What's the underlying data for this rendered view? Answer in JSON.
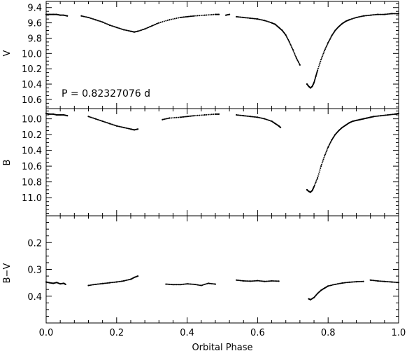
{
  "chart_data": [
    {
      "panel": "top",
      "type": "scatter",
      "ylabel": "V",
      "xlim": [
        0.0,
        1.0
      ],
      "ylim": [
        9.32,
        10.72
      ],
      "y_inverted": true,
      "yticks": [
        "9.4",
        "9.6",
        "9.8",
        "10.0",
        "10.2",
        "10.4",
        "10.6"
      ],
      "annotation": "P = 0.82327076 d",
      "series": [
        {
          "color": "#000000",
          "segments": [
            {
              "x": [
                0.0,
                0.01,
                0.02,
                0.03,
                0.04,
                0.05,
                0.06
              ],
              "y": [
                9.49,
                9.49,
                9.49,
                9.49,
                9.5,
                9.5,
                9.51
              ]
            },
            {
              "x": [
                0.1,
                0.12,
                0.14,
                0.16,
                0.18,
                0.2,
                0.22,
                0.24,
                0.25,
                0.26,
                0.28,
                0.3,
                0.32,
                0.35,
                0.38,
                0.4,
                0.42,
                0.45,
                0.48,
                0.49
              ],
              "y": [
                9.51,
                9.53,
                9.56,
                9.59,
                9.63,
                9.66,
                9.69,
                9.71,
                9.72,
                9.71,
                9.68,
                9.64,
                9.6,
                9.56,
                9.53,
                9.52,
                9.51,
                9.5,
                9.49,
                9.49
              ]
            },
            {
              "x": [
                0.51,
                0.52
              ],
              "y": [
                9.5,
                9.49
              ]
            },
            {
              "x": [
                0.54,
                0.56,
                0.58,
                0.6,
                0.62,
                0.64,
                0.65,
                0.66,
                0.67,
                0.68,
                0.69,
                0.7,
                0.71,
                0.72
              ],
              "y": [
                9.52,
                9.53,
                9.54,
                9.55,
                9.57,
                9.6,
                9.62,
                9.66,
                9.7,
                9.76,
                9.85,
                9.95,
                10.06,
                10.15
              ]
            },
            {
              "x": [
                0.74,
                0.745,
                0.75,
                0.755,
                0.76,
                0.765,
                0.77,
                0.78,
                0.79,
                0.8,
                0.81,
                0.82,
                0.83,
                0.84,
                0.85,
                0.86,
                0.88,
                0.9,
                0.92,
                0.94,
                0.96,
                0.98,
                1.0
              ],
              "y": [
                10.4,
                10.43,
                10.45,
                10.43,
                10.38,
                10.3,
                10.22,
                10.08,
                9.96,
                9.86,
                9.77,
                9.7,
                9.65,
                9.61,
                9.58,
                9.56,
                9.53,
                9.51,
                9.5,
                9.49,
                9.49,
                9.48,
                9.48
              ]
            }
          ]
        }
      ]
    },
    {
      "panel": "middle",
      "type": "scatter",
      "ylabel": "B",
      "xlim": [
        0.0,
        1.0
      ],
      "ylim": [
        9.87,
        11.23
      ],
      "y_inverted": true,
      "yticks": [
        "10.0",
        "10.2",
        "10.4",
        "10.6",
        "10.8",
        "11.0"
      ],
      "series": [
        {
          "color": "#000000",
          "segments": [
            {
              "x": [
                0.0,
                0.01,
                0.02,
                0.03,
                0.04,
                0.05,
                0.06
              ],
              "y": [
                9.93,
                9.94,
                9.94,
                9.95,
                9.95,
                9.95,
                9.96
              ]
            },
            {
              "x": [
                0.12,
                0.14,
                0.16,
                0.18,
                0.2,
                0.22,
                0.24,
                0.25,
                0.26
              ],
              "y": [
                9.97,
                10.0,
                10.03,
                10.06,
                10.09,
                10.11,
                10.13,
                10.14,
                10.13
              ]
            },
            {
              "x": [
                0.33,
                0.35,
                0.38,
                0.4,
                0.42,
                0.45,
                0.48,
                0.49
              ],
              "y": [
                10.01,
                9.99,
                9.98,
                9.97,
                9.96,
                9.95,
                9.94,
                9.94
              ]
            },
            {
              "x": [
                0.54,
                0.56,
                0.58,
                0.6,
                0.62,
                0.64,
                0.65,
                0.66,
                0.665
              ],
              "y": [
                9.95,
                9.96,
                9.97,
                9.98,
                10.0,
                10.03,
                10.06,
                10.09,
                10.11
              ]
            },
            {
              "x": [
                0.74,
                0.745,
                0.75,
                0.755,
                0.76,
                0.77,
                0.78,
                0.79,
                0.8,
                0.81,
                0.82,
                0.83,
                0.84,
                0.85,
                0.86,
                0.87,
                0.88,
                0.89,
                0.9,
                0.91,
                0.92,
                0.93,
                0.95,
                0.97,
                0.99,
                1.0
              ],
              "y": [
                10.9,
                10.92,
                10.93,
                10.91,
                10.86,
                10.75,
                10.6,
                10.47,
                10.36,
                10.27,
                10.2,
                10.15,
                10.11,
                10.08,
                10.05,
                10.03,
                10.02,
                10.01,
                10.0,
                9.99,
                9.98,
                9.97,
                9.96,
                9.95,
                9.94,
                9.93
              ]
            }
          ]
        }
      ]
    },
    {
      "panel": "bottom",
      "type": "scatter",
      "ylabel": "B−V",
      "xlabel": "Orbital Phase",
      "xlim": [
        0.0,
        1.0
      ],
      "ylim": [
        0.1,
        0.5
      ],
      "y_inverted": true,
      "yticks": [
        "0.2",
        "0.3",
        "0.4"
      ],
      "xticks": [
        "0.0",
        "0.2",
        "0.4",
        "0.6",
        "0.8",
        "1.0"
      ],
      "series": [
        {
          "color": "#000000",
          "segments": [
            {
              "x": [
                0.0,
                0.01,
                0.02,
                0.03,
                0.04,
                0.05,
                0.055
              ],
              "y": [
                0.347,
                0.35,
                0.352,
                0.349,
                0.354,
                0.352,
                0.356
              ]
            },
            {
              "x": [
                0.12,
                0.14,
                0.16,
                0.18,
                0.2,
                0.22,
                0.24,
                0.25,
                0.26
              ],
              "y": [
                0.36,
                0.356,
                0.353,
                0.35,
                0.347,
                0.343,
                0.337,
                0.33,
                0.325
              ]
            },
            {
              "x": [
                0.34,
                0.36,
                0.38,
                0.4,
                0.42,
                0.44,
                0.46,
                0.48
              ],
              "y": [
                0.355,
                0.357,
                0.357,
                0.354,
                0.356,
                0.36,
                0.352,
                0.355
              ]
            },
            {
              "x": [
                0.54,
                0.56,
                0.58,
                0.6,
                0.62,
                0.64,
                0.66
              ],
              "y": [
                0.34,
                0.343,
                0.344,
                0.342,
                0.345,
                0.343,
                0.344
              ]
            },
            {
              "x": [
                0.745,
                0.75,
                0.76,
                0.77,
                0.78,
                0.79,
                0.8,
                0.82,
                0.84,
                0.86,
                0.88,
                0.9
              ],
              "y": [
                0.41,
                0.413,
                0.405,
                0.39,
                0.378,
                0.37,
                0.362,
                0.356,
                0.351,
                0.348,
                0.346,
                0.345
              ]
            },
            {
              "x": [
                0.92,
                0.94,
                0.96,
                0.98,
                1.0
              ],
              "y": [
                0.34,
                0.343,
                0.345,
                0.347,
                0.349
              ]
            }
          ]
        }
      ]
    }
  ]
}
